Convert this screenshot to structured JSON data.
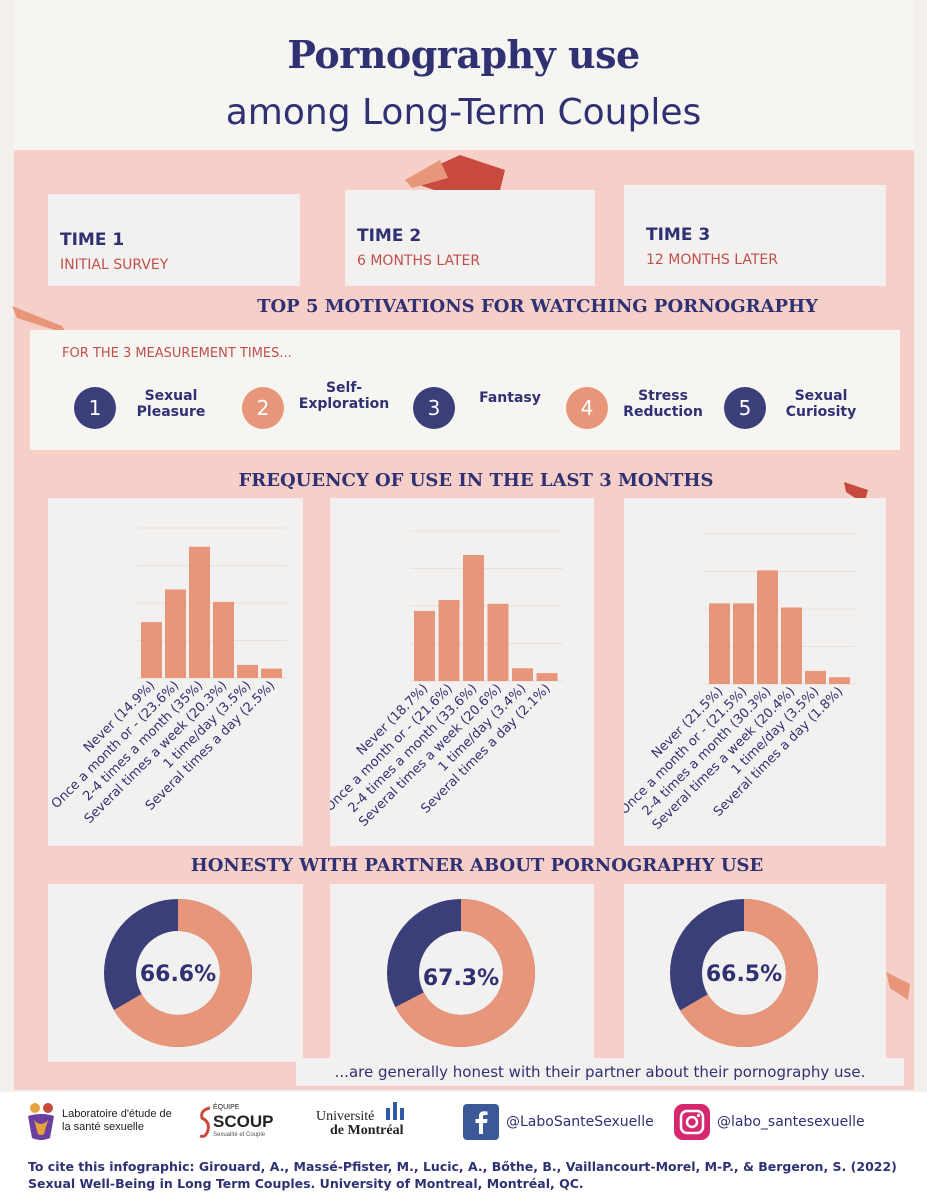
{
  "title": {
    "main": "Pornography use",
    "sub": "among Long-Term Couples"
  },
  "times": [
    {
      "name": "TIME 1",
      "sub": "INITIAL SURVEY"
    },
    {
      "name": "TIME 2",
      "sub": "6 MONTHS LATER"
    },
    {
      "name": "TIME 3",
      "sub": "12 MONTHS LATER"
    }
  ],
  "motivations": {
    "heading": "TOP 5 MOTIVATIONS FOR WATCHING PORNOGRAPHY",
    "caption": "FOR THE 3 MEASUREMENT TIMES...",
    "items": [
      {
        "num": "1",
        "label": "Sexual Pleasure",
        "color": "#3a3f7a"
      },
      {
        "num": "2",
        "label": "Self-Exploration",
        "color": "#e8967a"
      },
      {
        "num": "3",
        "label": "Fantasy",
        "color": "#3a3f7a"
      },
      {
        "num": "4",
        "label": "Stress Reduction",
        "color": "#e8967a"
      },
      {
        "num": "5",
        "label": "Sexual Curiosity",
        "color": "#3a3f7a"
      }
    ]
  },
  "frequency": {
    "heading": "FREQUENCY OF USE IN THE LAST 3 MONTHS"
  },
  "honesty": {
    "heading": "HONESTY WITH PARTNER ABOUT PORNOGRAPHY USE",
    "note": "...are generally honest with their partner about their pornography use."
  },
  "chart_data": [
    {
      "type": "bar",
      "title": "Frequency of use – Time 1",
      "categories": [
        "Never (14.9%)",
        "Once a month or - (23.6%)",
        "2-4 times a month (35%)",
        "Several times a week (20.3%)",
        "1 time/day (3.5%)",
        "Several times a day (2.5%)"
      ],
      "values": [
        14.9,
        23.6,
        35.0,
        20.3,
        3.5,
        2.5
      ],
      "ylim": [
        0,
        40
      ]
    },
    {
      "type": "bar",
      "title": "Frequency of use – Time 2",
      "categories": [
        "Never (18.7%)",
        "Once a month or - (21.6%)",
        "2-4 times a month (33.6%)",
        "Several times a week (20.6%)",
        "1 time/day (3.4%)",
        "Several times a day (2.1%)"
      ],
      "values": [
        18.7,
        21.6,
        33.6,
        20.6,
        3.4,
        2.1
      ],
      "ylim": [
        0,
        40
      ]
    },
    {
      "type": "bar",
      "title": "Frequency of use – Time 3",
      "categories": [
        "Never (21.5%)",
        "Once a month or - (21.5%)",
        "2-4 times a month (30.3%)",
        "Several times a week (20.4%)",
        "1 time/day (3.5%)",
        "Several times a day (1.8%)"
      ],
      "values": [
        21.5,
        21.5,
        30.3,
        20.4,
        3.5,
        1.8
      ],
      "ylim": [
        0,
        40
      ]
    },
    {
      "type": "pie",
      "title": "Honesty – Time 1",
      "label": "66.6%",
      "values": [
        66.6,
        33.4
      ],
      "colors": [
        "#e8967a",
        "#3a3f7a"
      ]
    },
    {
      "type": "pie",
      "title": "Honesty – Time 2",
      "label": "67.3%",
      "values": [
        67.3,
        32.7
      ],
      "colors": [
        "#e8967a",
        "#3a3f7a"
      ]
    },
    {
      "type": "pie",
      "title": "Honesty – Time 3",
      "label": "66.5%",
      "values": [
        66.5,
        33.5
      ],
      "colors": [
        "#e8967a",
        "#3a3f7a"
      ]
    }
  ],
  "footer": {
    "lab_name": "Laboratoire d'étude de la santé sexuelle",
    "scoup_top": "ÉQUIPE",
    "scoup_name": "SCOUP",
    "scoup_sub": "Sexualité et Couple",
    "udem_1": "Université",
    "udem_2": "de Montréal",
    "facebook": "@LaboSanteSexuelle",
    "instagram": "@labo_santesexuelle",
    "citation": "To cite this infographic: Girouard, A., Massé-Pfister, M., Lucic, A., Bőthe, B., Vaillancourt-Morel, M-P., & Bergeron, S. (2022) Sexual Well-Being in Long Term Couples. University of Montreal, Montréal, QC."
  }
}
